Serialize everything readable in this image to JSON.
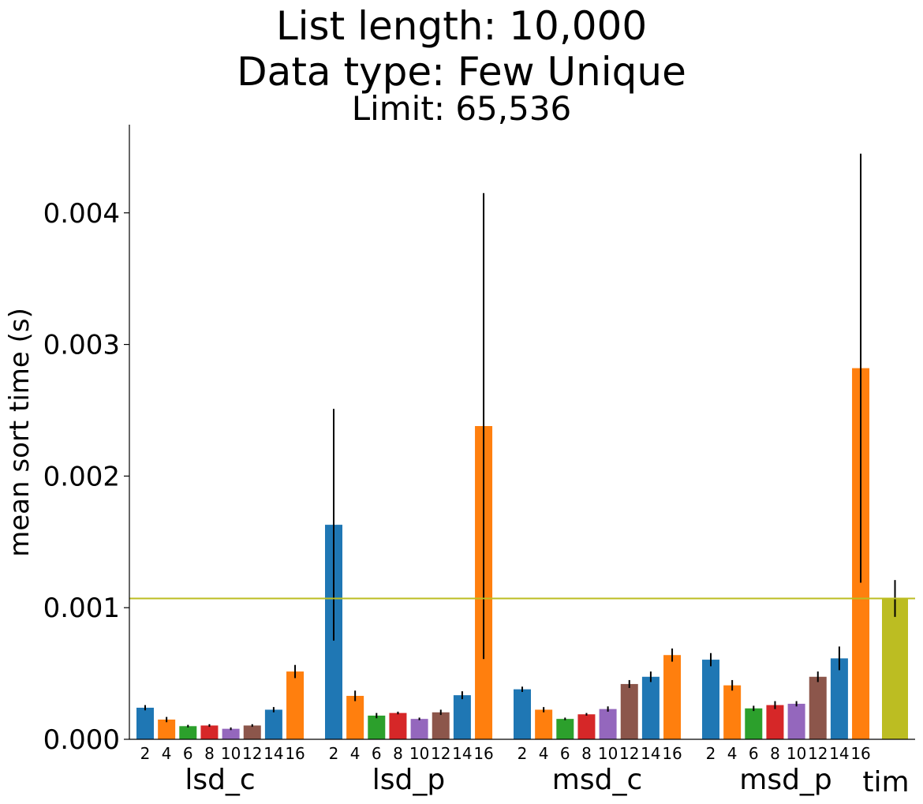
{
  "chart_data": {
    "type": "bar",
    "title_lines": [
      "List length: 10,000",
      "Data type: Few Unique"
    ],
    "subtitle": "Limit: 65,536",
    "xlabel": "",
    "ylabel": "mean sort time (s)",
    "ylim": [
      0,
      0.00467
    ],
    "yticks": [
      "0.000",
      "0.001",
      "0.002",
      "0.003",
      "0.004"
    ],
    "ytick_values": [
      0,
      0.001,
      0.002,
      0.003,
      0.004
    ],
    "grid": false,
    "reference_line": {
      "value": 0.00107,
      "color": "#bcbd22"
    },
    "palette": [
      "#1f77b4",
      "#ff7f0e",
      "#2ca02c",
      "#d62728",
      "#9467bd",
      "#8c564b",
      "#1f77b4",
      "#ff7f0e"
    ],
    "groups": [
      {
        "name": "lsd_c",
        "categories": [
          "2",
          "4",
          "6",
          "8",
          "10",
          "12",
          "14",
          "16"
        ],
        "values": [
          0.00024,
          0.00015,
          0.0001,
          0.000105,
          8e-05,
          0.000105,
          0.000225,
          0.000515
        ],
        "errors": [
          2e-05,
          2e-05,
          1e-05,
          1e-05,
          1e-05,
          1e-05,
          2e-05,
          5e-05
        ]
      },
      {
        "name": "lsd_p",
        "categories": [
          "2",
          "4",
          "6",
          "8",
          "10",
          "12",
          "14",
          "16"
        ],
        "values": [
          0.00163,
          0.00033,
          0.00018,
          0.0002,
          0.000155,
          0.000205,
          0.000335,
          0.00238
        ],
        "errors": [
          0.00088,
          4e-05,
          2e-05,
          1e-05,
          1e-05,
          2e-05,
          3e-05,
          0.00177
        ]
      },
      {
        "name": "msd_c",
        "categories": [
          "2",
          "4",
          "6",
          "8",
          "10",
          "12",
          "14",
          "16"
        ],
        "values": [
          0.00038,
          0.000225,
          0.000155,
          0.00019,
          0.00023,
          0.00042,
          0.000475,
          0.00064
        ],
        "errors": [
          2e-05,
          2e-05,
          1e-05,
          1e-05,
          2e-05,
          3e-05,
          4e-05,
          5e-05
        ]
      },
      {
        "name": "msd_p",
        "categories": [
          "2",
          "4",
          "6",
          "8",
          "10",
          "12",
          "14",
          "16"
        ],
        "values": [
          0.000605,
          0.00041,
          0.000235,
          0.00026,
          0.00027,
          0.000475,
          0.000615,
          0.00282
        ],
        "errors": [
          5e-05,
          4e-05,
          2e-05,
          3e-05,
          2e-05,
          4e-05,
          9e-05,
          0.00163
        ]
      },
      {
        "name": "tim",
        "categories": [],
        "values": [
          0.00107
        ],
        "errors": [
          0.00014
        ],
        "color": "#bcbd22"
      }
    ]
  }
}
